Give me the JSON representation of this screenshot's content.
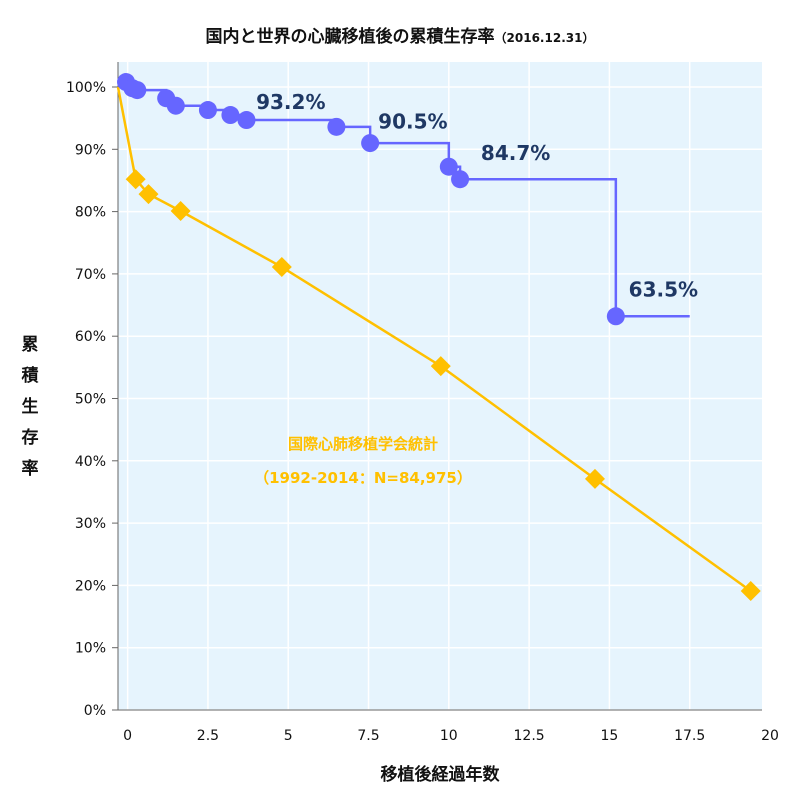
{
  "chart_data": {
    "type": "line",
    "title": "国内と世界の心臓移植後の累積生存率",
    "subtitle": "（2016.12.31）",
    "xlabel": "移植後経過年数",
    "ylabel": "累積生存率",
    "xlim": [
      -0.3,
      20
    ],
    "ylim": [
      0,
      100
    ],
    "xticks": [
      "0",
      "2.5",
      "5",
      "7.5",
      "10",
      "12.5",
      "15",
      "17.5",
      "20"
    ],
    "xtick_values": [
      0,
      2.5,
      5,
      7.5,
      10,
      12.5,
      15,
      17.5,
      20
    ],
    "yticks": [
      "0%",
      "10%",
      "20%",
      "30%",
      "40%",
      "50%",
      "60%",
      "70%",
      "80%",
      "90%",
      "100%"
    ],
    "grid": true,
    "background": "#e6f4fd",
    "series": [
      {
        "color": "#6666ff",
        "marker": "circle",
        "step": true,
        "x": [
          -0.05,
          0.15,
          0.3,
          1.2,
          1.5,
          2.5,
          3.2,
          3.7,
          6.5,
          7.55,
          10.0,
          10.35,
          15.2
        ],
        "y": [
          100.8,
          99.8,
          99.5,
          98.2,
          97.0,
          96.3,
          95.5,
          94.7,
          93.6,
          91.0,
          87.2,
          85.2,
          63.2
        ],
        "line_end_x": 17.5,
        "labels": [
          {
            "text": "93.2%",
            "x": 4.0,
            "y": 96.5
          },
          {
            "text": "90.5%",
            "x": 7.8,
            "y": 93.3
          },
          {
            "text": "84.7%",
            "x": 11.0,
            "y": 88.3
          },
          {
            "text": "63.5%",
            "x": 15.6,
            "y": 66.4
          }
        ]
      },
      {
        "color": "#ffc000",
        "marker": "diamond",
        "step": false,
        "x": [
          -0.3,
          0.25,
          0.65,
          1.65,
          4.8,
          9.75,
          14.55,
          19.4
        ],
        "y": [
          100,
          85.2,
          82.8,
          80.1,
          71.1,
          55.2,
          37.1,
          19.1
        ],
        "marker_from": 1
      }
    ],
    "annotation": {
      "line1": "国際心肺移植学会統計",
      "line2": "（1992-2014：N=84,975）",
      "color": "#ffc000"
    }
  }
}
